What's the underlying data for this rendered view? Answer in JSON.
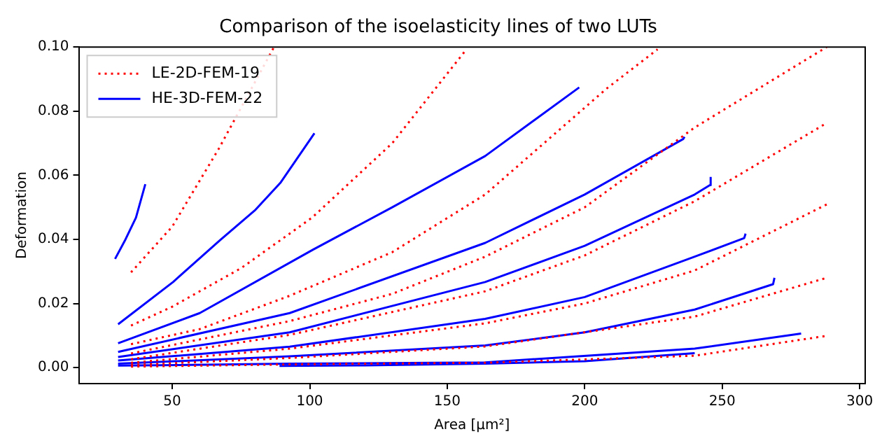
{
  "chart_data": {
    "type": "line",
    "title": "Comparison of the isoelasticity lines of two LUTs",
    "xlabel": "Area [µm²]",
    "ylabel": "Deformation",
    "xlim": [
      16,
      302
    ],
    "ylim": [
      -0.005,
      0.1
    ],
    "xticks": [
      50,
      100,
      150,
      200,
      250,
      300
    ],
    "yticks": [
      {
        "value": 0,
        "label": "0.00"
      },
      {
        "value": 0.02,
        "label": "0.02"
      },
      {
        "value": 0.04,
        "label": "0.04"
      },
      {
        "value": 0.06,
        "label": "0.06"
      },
      {
        "value": 0.08,
        "label": "0.08"
      },
      {
        "value": 0.1,
        "label": "0.10"
      }
    ],
    "grid": false,
    "legend": "top left",
    "marker": "none",
    "series": [
      {
        "name": "LE-2D-FEM-19",
        "color": "#ff0000",
        "line_style": "dotted",
        "x": [
          35,
          50,
          67,
          87
        ],
        "values": [
          0.0297,
          0.044,
          0.0684,
          0.1
        ]
      },
      {
        "color": "#ff0000",
        "line_style": "dotted",
        "x": [
          35,
          50,
          75,
          92.7,
          101,
          130,
          157
        ],
        "values": [
          0.0131,
          0.019,
          0.031,
          0.0418,
          0.0469,
          0.07,
          0.0993
        ]
      },
      {
        "color": "#ff0000",
        "line_style": "dotted",
        "x": [
          35,
          60,
          92.7,
          130,
          163.8,
          207.9,
          226.5
        ],
        "values": [
          0.0073,
          0.012,
          0.0224,
          0.036,
          0.054,
          0.087,
          0.0993
        ]
      },
      {
        "color": "#ff0000",
        "line_style": "dotted",
        "x": [
          35,
          92.7,
          130,
          163.8,
          200,
          240,
          288
        ],
        "values": [
          0.0044,
          0.0145,
          0.023,
          0.0346,
          0.05,
          0.0749,
          0.1
        ]
      },
      {
        "color": "#ff0000",
        "line_style": "dotted",
        "x": [
          35,
          92.7,
          163.8,
          200,
          240,
          288
        ],
        "values": [
          0.0026,
          0.0102,
          0.0238,
          0.035,
          0.0519,
          0.0763
        ]
      },
      {
        "color": "#ff0000",
        "line_style": "dotted",
        "x": [
          35,
          92.7,
          163.8,
          200,
          240,
          288
        ],
        "values": [
          0.0015,
          0.0059,
          0.0138,
          0.02,
          0.0303,
          0.0509
        ]
      },
      {
        "color": "#ff0000",
        "line_style": "dotted",
        "x": [
          35,
          92.7,
          163.8,
          240,
          288
        ],
        "values": [
          0.0008,
          0.003,
          0.0066,
          0.0159,
          0.028
        ]
      },
      {
        "color": "#ff0000",
        "line_style": "dotted",
        "x": [
          35,
          92.7,
          163.8,
          240,
          288
        ],
        "values": [
          0.0003,
          0.001,
          0.0015,
          0.0037,
          0.0099
        ]
      },
      {
        "name": "HE-3D-FEM-22",
        "color": "#0000ff",
        "line_style": "solid",
        "x": [
          29.2,
          33,
          36.8,
          40.2
        ],
        "values": [
          0.0339,
          0.04,
          0.0468,
          0.0572
        ]
      },
      {
        "color": "#0000ff",
        "line_style": "solid",
        "x": [
          30.3,
          50.3,
          67.3,
          80,
          89.3,
          101.7
        ],
        "values": [
          0.0135,
          0.0267,
          0.0397,
          0.049,
          0.0576,
          0.0731
        ]
      },
      {
        "color": "#0000ff",
        "line_style": "solid",
        "x": [
          30.3,
          60,
          101.2,
          130,
          163.8,
          198
        ],
        "values": [
          0.0076,
          0.017,
          0.0368,
          0.05,
          0.066,
          0.0874
        ]
      },
      {
        "color": "#0000ff",
        "line_style": "solid",
        "x": [
          30.3,
          92.7,
          163.8,
          200,
          235.8,
          236.3
        ],
        "values": [
          0.0049,
          0.017,
          0.0389,
          0.054,
          0.0713,
          0.072
        ]
      },
      {
        "color": "#0000ff",
        "line_style": "solid",
        "x": [
          30.3,
          92.7,
          163.8,
          200,
          240,
          245.5,
          245.8
        ],
        "values": [
          0.0033,
          0.011,
          0.0267,
          0.038,
          0.054,
          0.0569,
          0.0595
        ]
      },
      {
        "color": "#0000ff",
        "line_style": "solid",
        "x": [
          30.3,
          92.7,
          163.8,
          200,
          240,
          258,
          258.5
        ],
        "values": [
          0.0022,
          0.0065,
          0.0152,
          0.022,
          0.0346,
          0.0404,
          0.0418
        ]
      },
      {
        "color": "#0000ff",
        "line_style": "solid",
        "x": [
          30.3,
          92.7,
          163.8,
          200,
          240,
          268.5,
          269
        ],
        "values": [
          0.0012,
          0.0035,
          0.0069,
          0.011,
          0.0181,
          0.026,
          0.028
        ]
      },
      {
        "color": "#0000ff",
        "line_style": "solid",
        "x": [
          30.3,
          92.7,
          163.8,
          240,
          278.7
        ],
        "values": [
          0.0006,
          0.0012,
          0.0016,
          0.0059,
          0.0106
        ]
      },
      {
        "color": "#0000ff",
        "line_style": "solid",
        "x": [
          89,
          120,
          163.8,
          200,
          240
        ],
        "values": [
          0.0005,
          0.0007,
          0.0012,
          0.002,
          0.0045
        ]
      }
    ]
  }
}
